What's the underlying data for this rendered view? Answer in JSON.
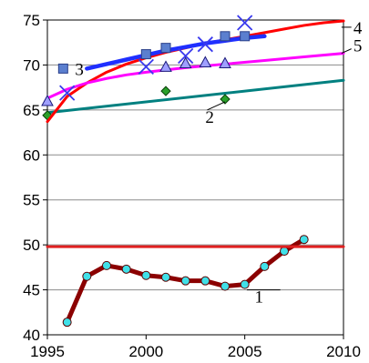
{
  "chart_data": {
    "type": "line",
    "title": "",
    "xlabel": "",
    "ylabel": "",
    "xlim": [
      1995,
      2010
    ],
    "ylim": [
      40,
      75
    ],
    "x_ticks": [
      "1995",
      "2000",
      "2005",
      "2010"
    ],
    "y_ticks": [
      "40",
      "45",
      "50",
      "55",
      "60",
      "65",
      "70",
      "75"
    ],
    "grid": "horizontal",
    "series": [
      {
        "label": "1",
        "color": "#8b0000",
        "marker_color": "#40e0e8",
        "marker": "circle",
        "x": [
          1996,
          1997,
          1998,
          1999,
          2000,
          2001,
          2002,
          2003,
          2004,
          2005,
          2006,
          2007,
          2008
        ],
        "y": [
          41.4,
          46.5,
          47.7,
          47.3,
          46.6,
          46.4,
          46.0,
          46.0,
          45.4,
          45.6,
          47.6,
          49.3,
          50.6
        ]
      },
      {
        "label": "",
        "color": "#e02020",
        "marker": "none",
        "x": [
          1995,
          2010
        ],
        "y": [
          49.8,
          49.8
        ]
      },
      {
        "label": "2",
        "color": "#008080",
        "marker": "none",
        "x": [
          1995,
          2010
        ],
        "y": [
          64.7,
          68.3
        ]
      },
      {
        "label": "",
        "color": "#2aa02a",
        "marker": "diamond",
        "line": false,
        "x": [
          1995,
          2001,
          2004
        ],
        "y": [
          64.4,
          67.1,
          66.2
        ]
      },
      {
        "label": "4",
        "color": "#ff0000",
        "marker": "none",
        "x": [
          1995,
          1996,
          1997,
          1998,
          1999,
          2000,
          2001,
          2002,
          2003,
          2004,
          2005,
          2006,
          2007,
          2008,
          2009,
          2010
        ],
        "y": [
          63.7,
          66.5,
          68.0,
          69.2,
          70.1,
          70.8,
          71.4,
          71.9,
          72.4,
          72.8,
          73.2,
          73.6,
          74.0,
          74.4,
          74.7,
          74.9
        ]
      },
      {
        "label": "5",
        "color": "#ff00ff",
        "marker": "none",
        "x": [
          1995,
          1996,
          1997,
          1998,
          1999,
          2000,
          2002,
          2004,
          2006,
          2008,
          2010
        ],
        "y": [
          66.3,
          67.3,
          68.0,
          68.5,
          68.9,
          69.2,
          69.7,
          70.1,
          70.5,
          70.9,
          71.3
        ]
      },
      {
        "label": "3",
        "color": "#1f2fff",
        "marker": "none",
        "x": [
          1997,
          1998,
          1999,
          2000,
          2001,
          2002,
          2003,
          2004,
          2005,
          2006
        ],
        "y": [
          69.6,
          70.1,
          70.6,
          71.1,
          71.6,
          72.0,
          72.4,
          72.7,
          73.0,
          73.2
        ]
      },
      {
        "label": "",
        "color": "#5b7fcf",
        "marker": "square",
        "line": false,
        "x": [
          1995.8,
          2000,
          2001,
          2004,
          2005
        ],
        "y": [
          69.6,
          71.2,
          71.9,
          73.2,
          73.2
        ]
      },
      {
        "label": "",
        "color": "#3a3aee",
        "marker": "cross",
        "line": false,
        "x": [
          1996,
          2000,
          2002,
          2003,
          2005
        ],
        "y": [
          66.9,
          69.8,
          71.0,
          72.3,
          74.7
        ]
      },
      {
        "label": "",
        "color": "#9f9fff",
        "marker": "triangle",
        "line": false,
        "x": [
          1995,
          2001,
          2002,
          2003,
          2004
        ],
        "y": [
          66.0,
          69.8,
          70.2,
          70.3,
          70.2
        ]
      }
    ],
    "labels": [
      {
        "text": "1",
        "x": 2005.5,
        "y": 44.2
      },
      {
        "text": "2",
        "x": 2003.0,
        "y": 64.2
      },
      {
        "text": "3",
        "x": 1996.4,
        "y": 69.5
      },
      {
        "text": "4",
        "x": 2010.5,
        "y": 74.1
      },
      {
        "text": "5",
        "x": 2010.5,
        "y": 72.1
      }
    ]
  }
}
